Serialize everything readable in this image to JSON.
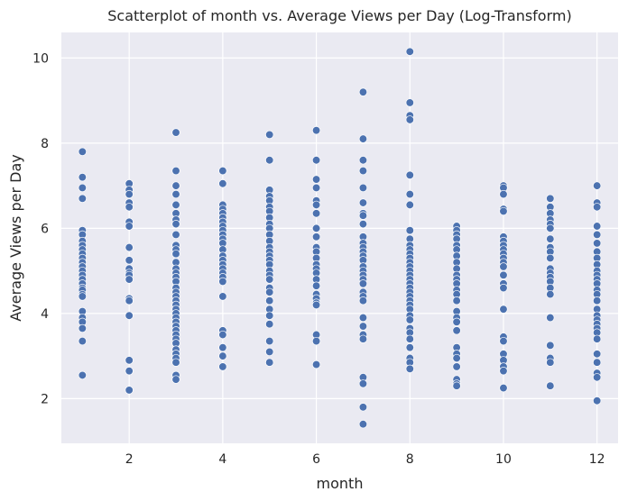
{
  "chart_data": {
    "type": "scatter",
    "title": "Scatterplot of month vs. Average Views per Day (Log-Transform)",
    "xlabel": "month",
    "ylabel": "Average Views per Day",
    "xlim": [
      0.55,
      12.45
    ],
    "ylim": [
      0.95,
      10.6
    ],
    "xticks": [
      2,
      4,
      6,
      8,
      10,
      12
    ],
    "yticks": [
      2,
      4,
      6,
      8,
      10
    ],
    "grid": true,
    "colors": {
      "background": "#EAEAF2",
      "grid": "#FFFFFF",
      "point": "#4C72B0",
      "point_edge": "#FFFFFF"
    },
    "series": [
      {
        "points": [
          [
            1,
            7.8
          ],
          [
            1,
            7.2
          ],
          [
            1,
            6.95
          ],
          [
            1,
            6.7
          ],
          [
            1,
            5.95
          ],
          [
            1,
            5.85
          ],
          [
            1,
            5.7
          ],
          [
            1,
            5.6
          ],
          [
            1,
            5.5
          ],
          [
            1,
            5.4
          ],
          [
            1,
            5.3
          ],
          [
            1,
            5.2
          ],
          [
            1,
            5.1
          ],
          [
            1,
            5.0
          ],
          [
            1,
            4.9
          ],
          [
            1,
            4.8
          ],
          [
            1,
            4.7
          ],
          [
            1,
            4.6
          ],
          [
            1,
            4.55
          ],
          [
            1,
            4.45
          ],
          [
            1,
            4.4
          ],
          [
            1,
            4.05
          ],
          [
            1,
            3.9
          ],
          [
            1,
            3.8
          ],
          [
            1,
            3.65
          ],
          [
            1,
            3.35
          ],
          [
            1,
            2.55
          ],
          [
            2,
            7.05
          ],
          [
            2,
            6.9
          ],
          [
            2,
            6.8
          ],
          [
            2,
            6.6
          ],
          [
            2,
            6.5
          ],
          [
            2,
            6.15
          ],
          [
            2,
            6.05
          ],
          [
            2,
            5.55
          ],
          [
            2,
            5.25
          ],
          [
            2,
            5.05
          ],
          [
            2,
            4.95
          ],
          [
            2,
            4.9
          ],
          [
            2,
            4.8
          ],
          [
            2,
            4.35
          ],
          [
            2,
            4.3
          ],
          [
            2,
            3.95
          ],
          [
            2,
            2.9
          ],
          [
            2,
            2.65
          ],
          [
            2,
            2.2
          ],
          [
            3,
            8.25
          ],
          [
            3,
            7.35
          ],
          [
            3,
            7.0
          ],
          [
            3,
            6.8
          ],
          [
            3,
            6.55
          ],
          [
            3,
            6.35
          ],
          [
            3,
            6.2
          ],
          [
            3,
            6.1
          ],
          [
            3,
            5.85
          ],
          [
            3,
            5.6
          ],
          [
            3,
            5.5
          ],
          [
            3,
            5.4
          ],
          [
            3,
            5.2
          ],
          [
            3,
            5.05
          ],
          [
            3,
            4.95
          ],
          [
            3,
            4.85
          ],
          [
            3,
            4.75
          ],
          [
            3,
            4.6
          ],
          [
            3,
            4.5
          ],
          [
            3,
            4.4
          ],
          [
            3,
            4.3
          ],
          [
            3,
            4.2
          ],
          [
            3,
            4.1
          ],
          [
            3,
            4.0
          ],
          [
            3,
            3.9
          ],
          [
            3,
            3.8
          ],
          [
            3,
            3.7
          ],
          [
            3,
            3.6
          ],
          [
            3,
            3.5
          ],
          [
            3,
            3.4
          ],
          [
            3,
            3.3
          ],
          [
            3,
            3.15
          ],
          [
            3,
            3.05
          ],
          [
            3,
            2.95
          ],
          [
            3,
            2.85
          ],
          [
            3,
            2.55
          ],
          [
            3,
            2.45
          ],
          [
            4,
            7.35
          ],
          [
            4,
            7.05
          ],
          [
            4,
            6.55
          ],
          [
            4,
            6.45
          ],
          [
            4,
            6.35
          ],
          [
            4,
            6.25
          ],
          [
            4,
            6.15
          ],
          [
            4,
            6.05
          ],
          [
            4,
            5.95
          ],
          [
            4,
            5.85
          ],
          [
            4,
            5.75
          ],
          [
            4,
            5.65
          ],
          [
            4,
            5.5
          ],
          [
            4,
            5.35
          ],
          [
            4,
            5.25
          ],
          [
            4,
            5.15
          ],
          [
            4,
            5.05
          ],
          [
            4,
            4.95
          ],
          [
            4,
            4.85
          ],
          [
            4,
            4.75
          ],
          [
            4,
            4.4
          ],
          [
            4,
            3.6
          ],
          [
            4,
            3.5
          ],
          [
            4,
            3.2
          ],
          [
            4,
            3.0
          ],
          [
            4,
            2.75
          ],
          [
            5,
            8.2
          ],
          [
            5,
            7.6
          ],
          [
            5,
            6.9
          ],
          [
            5,
            6.75
          ],
          [
            5,
            6.65
          ],
          [
            5,
            6.5
          ],
          [
            5,
            6.4
          ],
          [
            5,
            6.25
          ],
          [
            5,
            6.1
          ],
          [
            5,
            6.0
          ],
          [
            5,
            5.85
          ],
          [
            5,
            5.7
          ],
          [
            5,
            5.55
          ],
          [
            5,
            5.45
          ],
          [
            5,
            5.35
          ],
          [
            5,
            5.25
          ],
          [
            5,
            5.15
          ],
          [
            5,
            5.0
          ],
          [
            5,
            4.9
          ],
          [
            5,
            4.8
          ],
          [
            5,
            4.6
          ],
          [
            5,
            4.5
          ],
          [
            5,
            4.3
          ],
          [
            5,
            4.1
          ],
          [
            5,
            3.95
          ],
          [
            5,
            3.75
          ],
          [
            5,
            3.35
          ],
          [
            5,
            3.1
          ],
          [
            5,
            2.85
          ],
          [
            6,
            8.3
          ],
          [
            6,
            7.6
          ],
          [
            6,
            7.15
          ],
          [
            6,
            6.95
          ],
          [
            6,
            6.65
          ],
          [
            6,
            6.55
          ],
          [
            6,
            6.35
          ],
          [
            6,
            6.0
          ],
          [
            6,
            5.8
          ],
          [
            6,
            5.55
          ],
          [
            6,
            5.45
          ],
          [
            6,
            5.3
          ],
          [
            6,
            5.15
          ],
          [
            6,
            5.05
          ],
          [
            6,
            4.95
          ],
          [
            6,
            4.8
          ],
          [
            6,
            4.65
          ],
          [
            6,
            4.45
          ],
          [
            6,
            4.35
          ],
          [
            6,
            4.25
          ],
          [
            6,
            4.2
          ],
          [
            6,
            3.5
          ],
          [
            6,
            3.35
          ],
          [
            6,
            2.8
          ],
          [
            7,
            9.2
          ],
          [
            7,
            8.1
          ],
          [
            7,
            7.6
          ],
          [
            7,
            7.35
          ],
          [
            7,
            6.95
          ],
          [
            7,
            6.6
          ],
          [
            7,
            6.35
          ],
          [
            7,
            6.3
          ],
          [
            7,
            6.1
          ],
          [
            7,
            5.8
          ],
          [
            7,
            5.65
          ],
          [
            7,
            5.55
          ],
          [
            7,
            5.45
          ],
          [
            7,
            5.35
          ],
          [
            7,
            5.25
          ],
          [
            7,
            5.1
          ],
          [
            7,
            5.0
          ],
          [
            7,
            4.9
          ],
          [
            7,
            4.8
          ],
          [
            7,
            4.7
          ],
          [
            7,
            4.5
          ],
          [
            7,
            4.4
          ],
          [
            7,
            4.3
          ],
          [
            7,
            3.9
          ],
          [
            7,
            3.7
          ],
          [
            7,
            3.5
          ],
          [
            7,
            3.4
          ],
          [
            7,
            2.5
          ],
          [
            7,
            2.35
          ],
          [
            7,
            1.8
          ],
          [
            7,
            1.4
          ],
          [
            8,
            10.15
          ],
          [
            8,
            8.95
          ],
          [
            8,
            8.65
          ],
          [
            8,
            8.55
          ],
          [
            8,
            7.25
          ],
          [
            8,
            6.8
          ],
          [
            8,
            6.55
          ],
          [
            8,
            5.95
          ],
          [
            8,
            5.75
          ],
          [
            8,
            5.6
          ],
          [
            8,
            5.5
          ],
          [
            8,
            5.4
          ],
          [
            8,
            5.3
          ],
          [
            8,
            5.2
          ],
          [
            8,
            5.1
          ],
          [
            8,
            5.0
          ],
          [
            8,
            4.9
          ],
          [
            8,
            4.8
          ],
          [
            8,
            4.7
          ],
          [
            8,
            4.6
          ],
          [
            8,
            4.5
          ],
          [
            8,
            4.4
          ],
          [
            8,
            4.3
          ],
          [
            8,
            4.2
          ],
          [
            8,
            4.1
          ],
          [
            8,
            3.95
          ],
          [
            8,
            3.85
          ],
          [
            8,
            3.65
          ],
          [
            8,
            3.55
          ],
          [
            8,
            3.4
          ],
          [
            8,
            3.2
          ],
          [
            8,
            2.95
          ],
          [
            8,
            2.85
          ],
          [
            8,
            2.7
          ],
          [
            9,
            6.05
          ],
          [
            9,
            5.95
          ],
          [
            9,
            5.85
          ],
          [
            9,
            5.75
          ],
          [
            9,
            5.6
          ],
          [
            9,
            5.5
          ],
          [
            9,
            5.35
          ],
          [
            9,
            5.2
          ],
          [
            9,
            5.05
          ],
          [
            9,
            4.9
          ],
          [
            9,
            4.8
          ],
          [
            9,
            4.7
          ],
          [
            9,
            4.55
          ],
          [
            9,
            4.45
          ],
          [
            9,
            4.3
          ],
          [
            9,
            4.05
          ],
          [
            9,
            3.9
          ],
          [
            9,
            3.8
          ],
          [
            9,
            3.6
          ],
          [
            9,
            3.2
          ],
          [
            9,
            3.05
          ],
          [
            9,
            2.95
          ],
          [
            9,
            2.75
          ],
          [
            9,
            2.45
          ],
          [
            9,
            2.35
          ],
          [
            9,
            2.3
          ],
          [
            10,
            7.0
          ],
          [
            10,
            6.95
          ],
          [
            10,
            6.8
          ],
          [
            10,
            6.45
          ],
          [
            10,
            6.4
          ],
          [
            10,
            5.8
          ],
          [
            10,
            5.7
          ],
          [
            10,
            5.6
          ],
          [
            10,
            5.5
          ],
          [
            10,
            5.4
          ],
          [
            10,
            5.3
          ],
          [
            10,
            5.2
          ],
          [
            10,
            5.1
          ],
          [
            10,
            4.9
          ],
          [
            10,
            4.7
          ],
          [
            10,
            4.6
          ],
          [
            10,
            4.1
          ],
          [
            10,
            3.45
          ],
          [
            10,
            3.35
          ],
          [
            10,
            3.05
          ],
          [
            10,
            2.9
          ],
          [
            10,
            2.75
          ],
          [
            10,
            2.65
          ],
          [
            10,
            2.25
          ],
          [
            11,
            6.7
          ],
          [
            11,
            6.5
          ],
          [
            11,
            6.35
          ],
          [
            11,
            6.2
          ],
          [
            11,
            6.1
          ],
          [
            11,
            6.0
          ],
          [
            11,
            5.75
          ],
          [
            11,
            5.55
          ],
          [
            11,
            5.45
          ],
          [
            11,
            5.3
          ],
          [
            11,
            5.05
          ],
          [
            11,
            4.95
          ],
          [
            11,
            4.85
          ],
          [
            11,
            4.75
          ],
          [
            11,
            4.6
          ],
          [
            11,
            4.45
          ],
          [
            11,
            3.9
          ],
          [
            11,
            3.25
          ],
          [
            11,
            2.95
          ],
          [
            11,
            2.85
          ],
          [
            11,
            2.3
          ],
          [
            12,
            7.0
          ],
          [
            12,
            6.6
          ],
          [
            12,
            6.5
          ],
          [
            12,
            6.05
          ],
          [
            12,
            5.85
          ],
          [
            12,
            5.65
          ],
          [
            12,
            5.45
          ],
          [
            12,
            5.3
          ],
          [
            12,
            5.15
          ],
          [
            12,
            5.0
          ],
          [
            12,
            4.9
          ],
          [
            12,
            4.8
          ],
          [
            12,
            4.7
          ],
          [
            12,
            4.55
          ],
          [
            12,
            4.45
          ],
          [
            12,
            4.3
          ],
          [
            12,
            4.1
          ],
          [
            12,
            3.95
          ],
          [
            12,
            3.85
          ],
          [
            12,
            3.75
          ],
          [
            12,
            3.65
          ],
          [
            12,
            3.55
          ],
          [
            12,
            3.4
          ],
          [
            12,
            3.05
          ],
          [
            12,
            2.85
          ],
          [
            12,
            2.6
          ],
          [
            12,
            2.5
          ],
          [
            12,
            1.95
          ]
        ]
      }
    ]
  }
}
